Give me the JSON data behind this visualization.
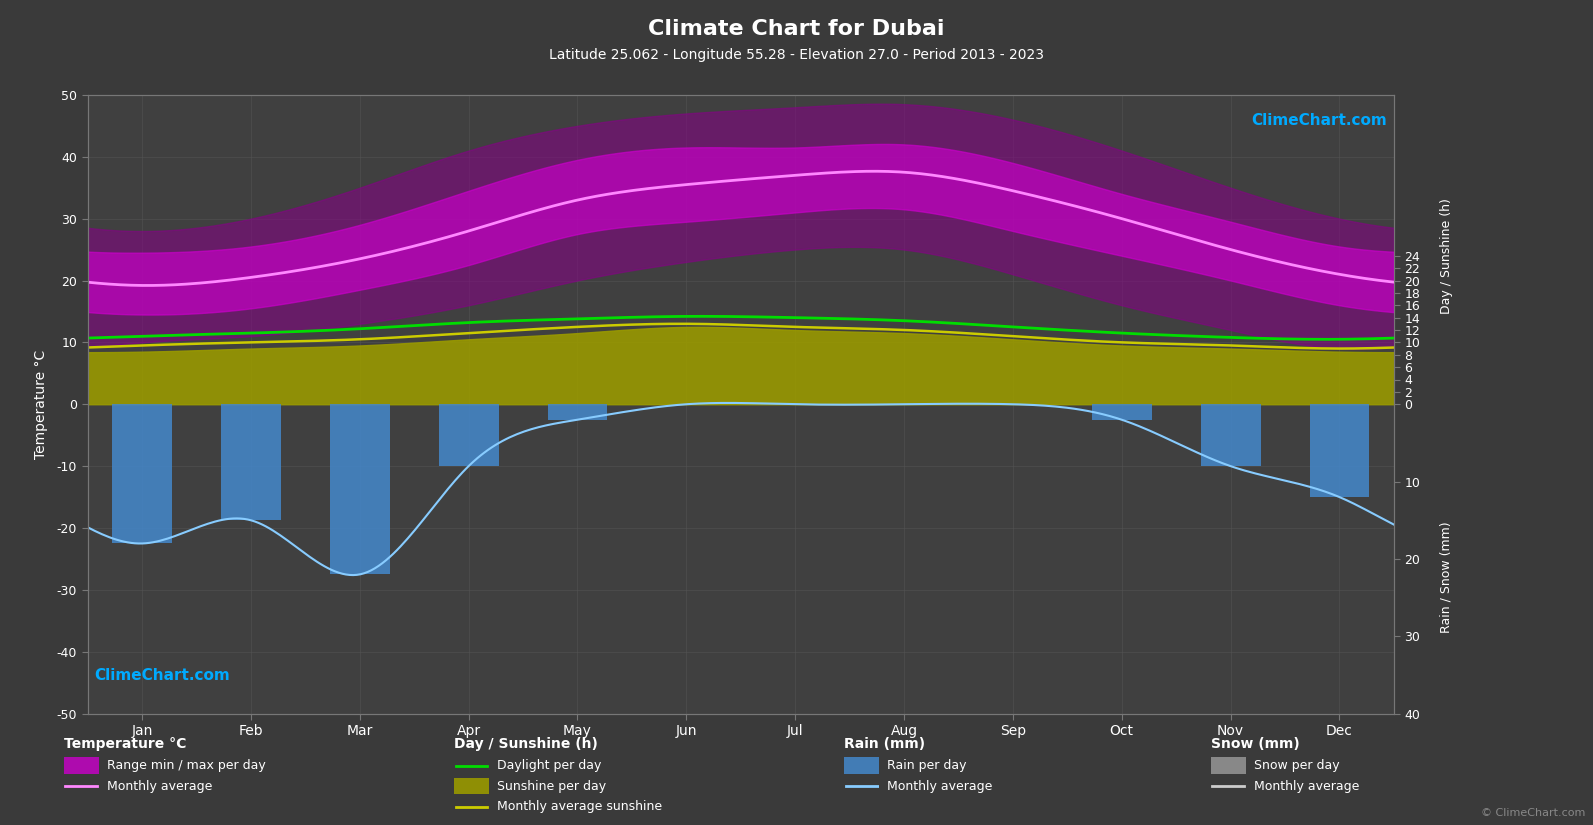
{
  "title": "Climate Chart for Dubai",
  "subtitle": "Latitude 25.062 - Longitude 55.28 - Elevation 27.0 - Period 2013 - 2023",
  "bg_color": "#3a3a3a",
  "plot_bg_color": "#404040",
  "grid_color": "#555555",
  "text_color": "#ffffff",
  "months": [
    "Jan",
    "Feb",
    "Mar",
    "Apr",
    "May",
    "Jun",
    "Jul",
    "Aug",
    "Sep",
    "Oct",
    "Nov",
    "Dec"
  ],
  "temp_ylim": [
    -50,
    50
  ],
  "temp_avg": [
    19.2,
    20.5,
    23.5,
    28.0,
    33.0,
    35.5,
    37.0,
    37.5,
    34.5,
    30.0,
    25.0,
    21.0
  ],
  "temp_max_avg": [
    24.5,
    25.5,
    29.0,
    34.5,
    39.5,
    41.5,
    41.5,
    42.0,
    39.0,
    34.0,
    29.5,
    25.5
  ],
  "temp_min_avg": [
    14.5,
    15.5,
    18.5,
    22.5,
    27.5,
    29.5,
    31.0,
    31.5,
    28.0,
    24.0,
    20.0,
    16.0
  ],
  "temp_max_record": [
    28.0,
    30.0,
    35.0,
    41.0,
    45.0,
    47.0,
    48.0,
    48.5,
    46.0,
    41.0,
    35.0,
    30.0
  ],
  "temp_min_record": [
    10.0,
    11.0,
    13.0,
    16.0,
    20.0,
    23.0,
    25.0,
    25.0,
    21.0,
    16.0,
    12.0,
    9.0
  ],
  "daylight": [
    11.0,
    11.5,
    12.2,
    13.2,
    13.8,
    14.2,
    14.0,
    13.5,
    12.5,
    11.5,
    10.8,
    10.5
  ],
  "sunshine_avg": [
    8.5,
    9.0,
    9.5,
    10.5,
    11.5,
    12.5,
    12.0,
    11.5,
    10.5,
    9.5,
    9.0,
    8.5
  ],
  "sunshine_monthly_avg": [
    9.5,
    10.0,
    10.5,
    11.5,
    12.5,
    13.0,
    12.5,
    12.0,
    11.0,
    10.0,
    9.5,
    9.0
  ],
  "rain_monthly_avg_mm": [
    18,
    15,
    22,
    8,
    2,
    0,
    0,
    0,
    0,
    2,
    8,
    12
  ],
  "rain_color": "#4488cc",
  "sunshine_fill_color": "#aaaa00",
  "daylight_color": "#00dd00",
  "temp_avg_line_color": "#ff88ff",
  "rain_avg_color": "#88ccff"
}
